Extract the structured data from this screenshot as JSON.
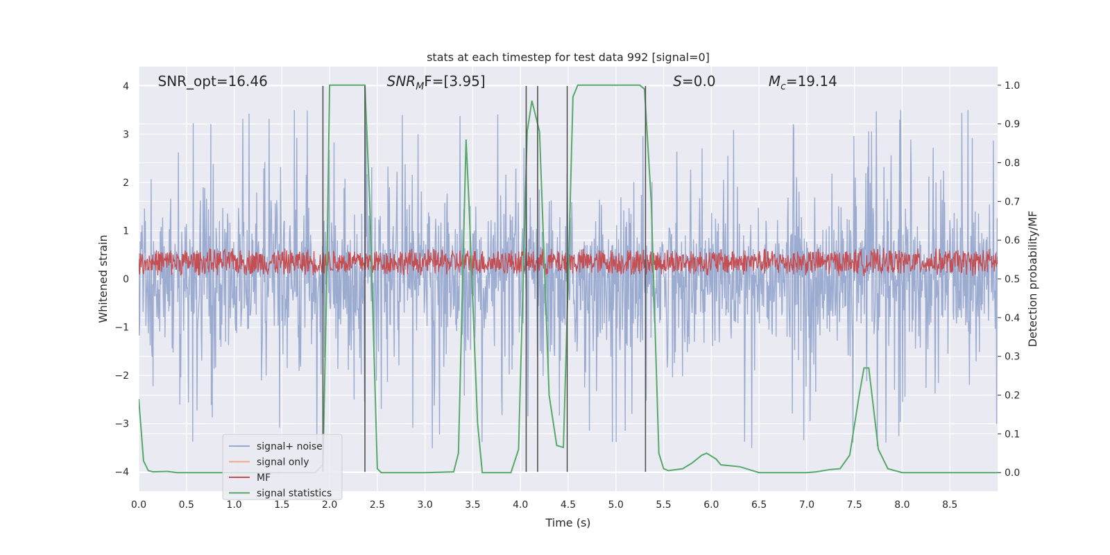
{
  "chart_data": {
    "type": "line",
    "title": "stats at each timestep for test data 992 [signal=0]",
    "xlabel": "Time (s)",
    "ylabel": "Whitened strain",
    "ylabel_right": "Detection probability/MF",
    "xlim": [
      0,
      9.0
    ],
    "ylim": [
      -4.4,
      4.4
    ],
    "ylim_right": [
      -0.048,
      1.048
    ],
    "x_ticks": [
      0.0,
      0.5,
      1.0,
      1.5,
      2.0,
      2.5,
      3.0,
      3.5,
      4.0,
      4.5,
      5.0,
      5.5,
      6.0,
      6.5,
      7.0,
      7.5,
      8.0,
      8.5
    ],
    "x_tick_labels": [
      "0.0",
      "0.5",
      "1.0",
      "1.5",
      "2.0",
      "2.5",
      "3.0",
      "3.5",
      "4.0",
      "4.5",
      "5.0",
      "5.5",
      "6.0",
      "6.5",
      "7.0",
      "7.5",
      "8.0",
      "8.5"
    ],
    "y_ticks": [
      -4,
      -3,
      -2,
      -1,
      0,
      1,
      2,
      3,
      4
    ],
    "y_tick_labels": [
      "−4",
      "−3",
      "−2",
      "−1",
      "0",
      "1",
      "2",
      "3",
      "4"
    ],
    "y_right_ticks": [
      0.0,
      0.1,
      0.2,
      0.3,
      0.4,
      0.5,
      0.6,
      0.7,
      0.8,
      0.9,
      1.0
    ],
    "y_right_tick_labels": [
      "0.0",
      "0.1",
      "0.2",
      "0.3",
      "0.4",
      "0.5",
      "0.6",
      "0.7",
      "0.8",
      "0.9",
      "1.0"
    ],
    "grid": true,
    "legend_position": "lower-left",
    "annotations": [
      {
        "base": "SNR_opt=16.46",
        "x": 0.2,
        "italic": false
      },
      {
        "base": "SNR",
        "sub": "M",
        "rest": "F=[3.95]",
        "x": 2.6,
        "italic": true
      },
      {
        "base": "S",
        "rest": "=0.0",
        "x": 5.6,
        "italic": true
      },
      {
        "base": "M",
        "sub": "c",
        "rest": "=19.14",
        "x": 6.6,
        "italic": true
      }
    ],
    "series": [
      {
        "name": "signal+ noise",
        "color": "#98a9cf",
        "kind": "noise",
        "amplitude": 2.2,
        "points": 1800
      },
      {
        "name": "signal only",
        "color": "#f0a88a",
        "kind": "empty"
      },
      {
        "name": "MF",
        "color": "#c44e52",
        "kind": "band",
        "center": 0.35,
        "amplitude": 0.3,
        "points": 1800
      },
      {
        "name": "signal statistics",
        "color": "#55a868",
        "kind": "line",
        "axis": "right",
        "x": [
          0.0,
          0.05,
          0.1,
          0.15,
          0.3,
          0.4,
          1.0,
          1.5,
          1.85,
          1.93,
          1.97,
          2.0,
          2.3,
          2.37,
          2.42,
          2.5,
          2.54,
          3.0,
          3.3,
          3.35,
          3.43,
          3.46,
          3.55,
          3.6,
          3.9,
          3.98,
          4.03,
          4.07,
          4.12,
          4.2,
          4.3,
          4.38,
          4.45,
          4.5,
          4.55,
          4.6,
          5.0,
          5.25,
          5.3,
          5.37,
          5.45,
          5.5,
          5.55,
          5.7,
          5.8,
          5.9,
          5.95,
          6.05,
          6.1,
          6.3,
          6.5,
          6.6,
          7.0,
          7.1,
          7.25,
          7.35,
          7.45,
          7.55,
          7.6,
          7.65,
          7.75,
          7.85,
          8.0,
          9.0
        ],
        "y": [
          0.19,
          0.03,
          0.005,
          0.002,
          0.003,
          0.0,
          0.0,
          0.0,
          0.0,
          0.02,
          0.5,
          1.0,
          1.0,
          1.0,
          0.7,
          0.01,
          0.0,
          0.0,
          0.002,
          0.05,
          0.86,
          0.7,
          0.13,
          0.0,
          0.0,
          0.06,
          0.52,
          0.88,
          0.96,
          0.88,
          0.2,
          0.07,
          0.065,
          0.5,
          0.97,
          1.0,
          1.0,
          1.0,
          0.99,
          0.7,
          0.05,
          0.01,
          0.005,
          0.01,
          0.025,
          0.045,
          0.05,
          0.035,
          0.02,
          0.015,
          0.0,
          0.0,
          0.0,
          0.002,
          0.008,
          0.01,
          0.045,
          0.2,
          0.27,
          0.27,
          0.06,
          0.01,
          0.0,
          0.0
        ]
      },
      {
        "name": "",
        "color": "#4d4d4d",
        "kind": "vlines",
        "x": [
          1.93,
          2.37,
          4.06,
          4.18,
          4.49,
          5.31
        ],
        "y_range": [
          -4.0,
          4.0
        ]
      }
    ]
  }
}
